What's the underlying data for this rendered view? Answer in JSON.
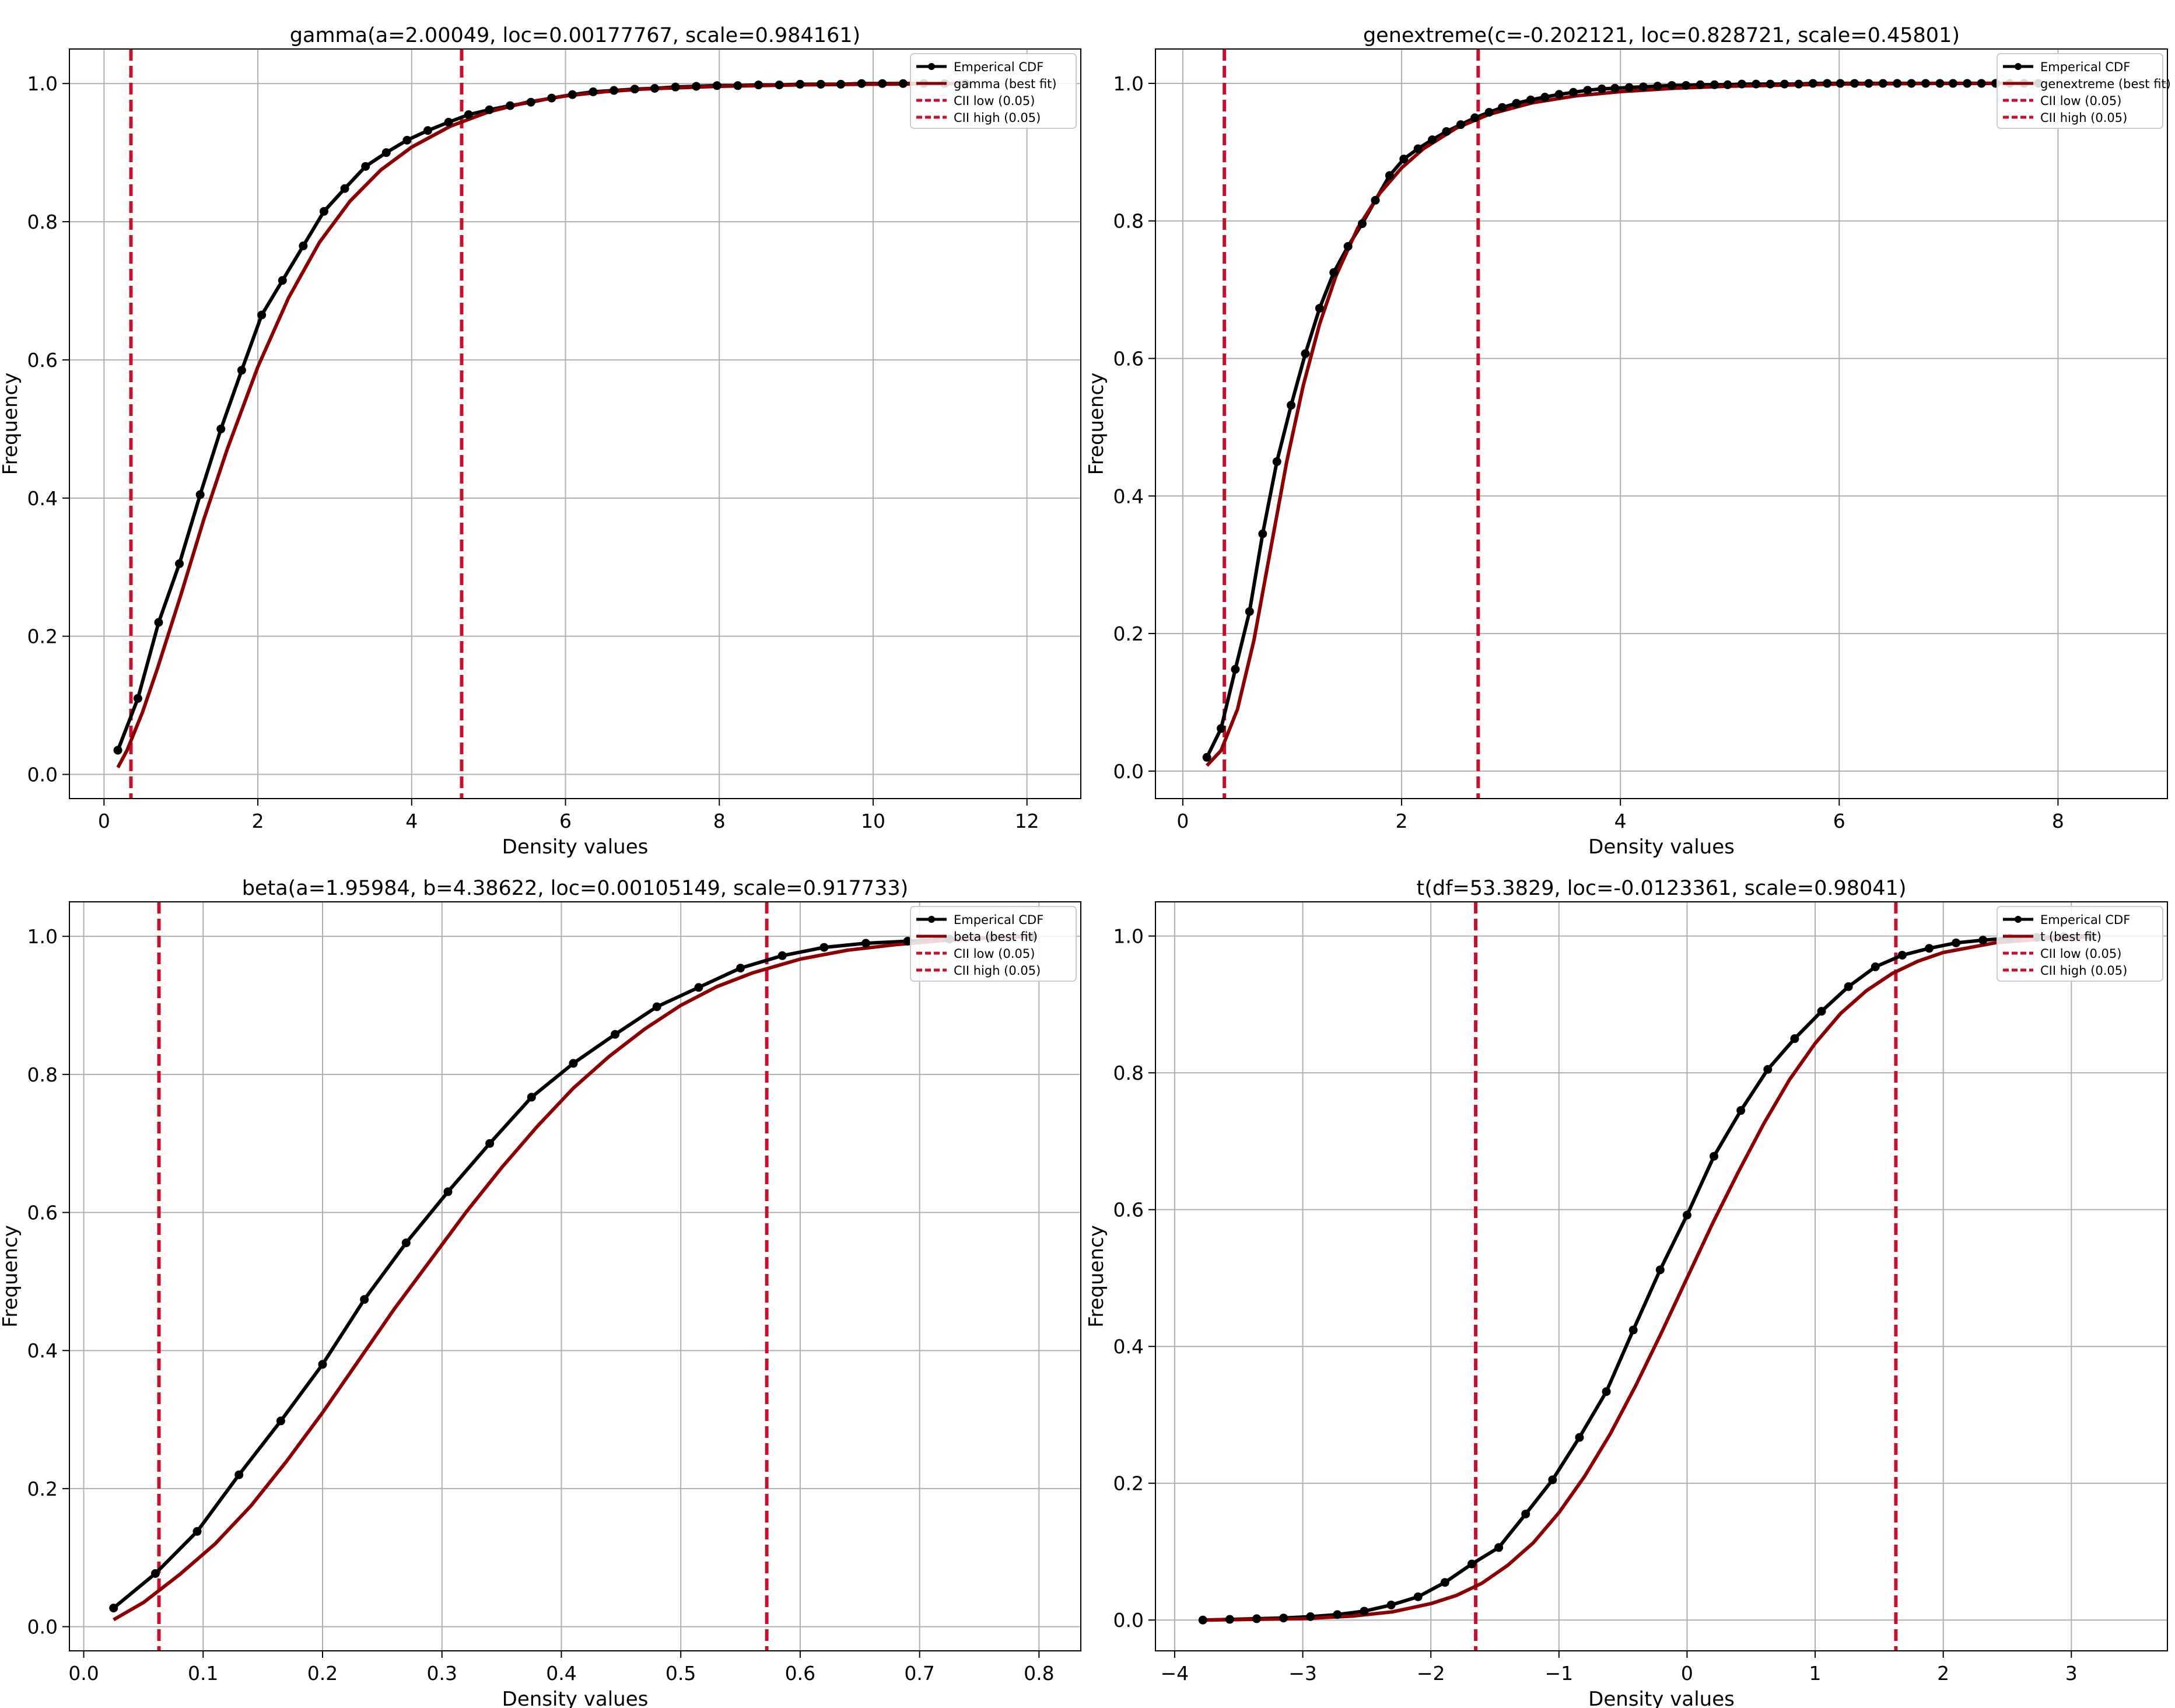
{
  "figure": {
    "colors": {
      "empirical": "#000000",
      "fit": "#8b0000",
      "ci": "#c8102e",
      "grid": "#b0b0b0",
      "axes": "#000000"
    }
  },
  "chart_data": [
    {
      "type": "line",
      "title": "gamma(a=2.00049, loc=0.00177767, scale=0.984161)",
      "xlabel": "Density values",
      "ylabel": "Frequency",
      "xlim": [
        -0.45,
        12.7
      ],
      "ylim": [
        -0.035,
        1.05
      ],
      "xticks": [
        0,
        2,
        4,
        6,
        8,
        10,
        12
      ],
      "xtick_labels": [
        "0",
        "2",
        "4",
        "6",
        "8",
        "10",
        "12"
      ],
      "yticks": [
        0.0,
        0.2,
        0.4,
        0.6,
        0.8,
        1.0
      ],
      "ytick_labels": [
        "0.0",
        "0.2",
        "0.4",
        "0.6",
        "0.8",
        "1.0"
      ],
      "grid": true,
      "legend_position": "top-right",
      "legend": [
        "Emperical CDF",
        "gamma (best fit)",
        "CII low (0.05)",
        "CII high (0.05)"
      ],
      "ci_low": 0.35,
      "ci_high": 4.65,
      "empirical": {
        "x": [
          0.18,
          0.44,
          0.71,
          0.98,
          1.25,
          1.52,
          1.79,
          2.05,
          2.32,
          2.59,
          2.86,
          3.13,
          3.4,
          3.67,
          3.94,
          4.21,
          4.48,
          4.74,
          5.01,
          5.28,
          5.55,
          5.82,
          6.09,
          6.36,
          6.63,
          6.9,
          7.16,
          7.43,
          7.7,
          7.97,
          8.24,
          8.51,
          8.78,
          9.05,
          9.32,
          9.58,
          9.85,
          10.12,
          10.39,
          10.66,
          10.93,
          11.2
        ],
        "y": [
          0.035,
          0.11,
          0.22,
          0.305,
          0.405,
          0.5,
          0.585,
          0.665,
          0.715,
          0.765,
          0.815,
          0.848,
          0.88,
          0.9,
          0.918,
          0.932,
          0.944,
          0.955,
          0.962,
          0.968,
          0.973,
          0.979,
          0.984,
          0.988,
          0.99,
          0.992,
          0.993,
          0.995,
          0.996,
          0.997,
          0.997,
          0.998,
          0.998,
          0.999,
          0.999,
          0.999,
          1.0,
          1.0,
          1.0,
          1.0,
          1.0,
          1.0
        ]
      },
      "fit": {
        "x": [
          0.18,
          0.3,
          0.5,
          0.7,
          1.0,
          1.3,
          1.6,
          2.0,
          2.4,
          2.8,
          3.2,
          3.6,
          4.0,
          4.5,
          5.0,
          5.5,
          6.0,
          6.5,
          7.0,
          8.0,
          9.0,
          10.0,
          11.2
        ],
        "y": [
          0.01,
          0.035,
          0.09,
          0.155,
          0.26,
          0.37,
          0.47,
          0.59,
          0.69,
          0.77,
          0.83,
          0.875,
          0.908,
          0.938,
          0.959,
          0.973,
          0.982,
          0.988,
          0.992,
          0.996,
          0.998,
          0.999,
          1.0
        ]
      }
    },
    {
      "type": "line",
      "title": "genextreme(c=-0.202121, loc=0.828721, scale=0.45801)",
      "xlabel": "Density values",
      "ylabel": "Frequency",
      "xlim": [
        -0.25,
        9.0
      ],
      "ylim": [
        -0.04,
        1.05
      ],
      "xticks": [
        0,
        2,
        4,
        6,
        8
      ],
      "xtick_labels": [
        "0",
        "2",
        "4",
        "6",
        "8"
      ],
      "yticks": [
        0.0,
        0.2,
        0.4,
        0.6,
        0.8,
        1.0
      ],
      "ytick_labels": [
        "0.0",
        "0.2",
        "0.4",
        "0.6",
        "0.8",
        "1.0"
      ],
      "grid": true,
      "legend_position": "top-right",
      "legend": [
        "Emperical CDF",
        "genextreme (best fit)",
        "CII low (0.05)",
        "CII high (0.05)"
      ],
      "ci_low": 0.38,
      "ci_high": 2.7,
      "empirical": {
        "x": [
          0.22,
          0.35,
          0.48,
          0.61,
          0.73,
          0.86,
          0.99,
          1.12,
          1.25,
          1.38,
          1.51,
          1.64,
          1.76,
          1.89,
          2.02,
          2.15,
          2.28,
          2.41,
          2.54,
          2.67,
          2.8,
          2.92,
          3.05,
          3.18,
          3.31,
          3.44,
          3.57,
          3.7,
          3.83,
          3.95,
          4.08,
          4.21,
          4.34,
          4.47,
          4.6,
          4.73,
          4.86,
          4.98,
          5.11,
          5.24,
          5.37,
          5.5,
          5.63,
          5.76,
          5.89,
          6.01,
          6.14,
          6.27,
          6.4,
          6.53,
          6.66,
          6.79,
          6.92,
          7.04,
          7.17,
          7.3,
          7.43,
          7.56,
          7.69,
          7.82
        ],
        "y": [
          0.02,
          0.062,
          0.148,
          0.232,
          0.345,
          0.45,
          0.532,
          0.607,
          0.673,
          0.725,
          0.763,
          0.796,
          0.83,
          0.866,
          0.89,
          0.905,
          0.918,
          0.93,
          0.94,
          0.95,
          0.958,
          0.965,
          0.971,
          0.976,
          0.98,
          0.984,
          0.987,
          0.99,
          0.992,
          0.993,
          0.994,
          0.995,
          0.996,
          0.997,
          0.997,
          0.998,
          0.998,
          0.998,
          0.999,
          0.999,
          0.999,
          0.999,
          0.999,
          1.0,
          1.0,
          1.0,
          1.0,
          1.0,
          1.0,
          1.0,
          1.0,
          1.0,
          1.0,
          1.0,
          1.0,
          1.0,
          1.0,
          1.0,
          1.0,
          1.0
        ]
      },
      "fit": {
        "x": [
          0.22,
          0.35,
          0.5,
          0.65,
          0.8,
          0.95,
          1.1,
          1.25,
          1.4,
          1.6,
          1.8,
          2.0,
          2.2,
          2.5,
          2.8,
          3.2,
          3.6,
          4.0,
          4.5,
          5.0,
          6.0,
          7.0,
          7.82
        ],
        "y": [
          0.008,
          0.03,
          0.09,
          0.19,
          0.32,
          0.45,
          0.56,
          0.65,
          0.72,
          0.79,
          0.84,
          0.877,
          0.905,
          0.935,
          0.955,
          0.972,
          0.982,
          0.988,
          0.993,
          0.996,
          0.999,
          1.0,
          1.0
        ]
      }
    },
    {
      "type": "line",
      "title": "beta(a=1.95984, b=4.38622, loc=0.00105149, scale=0.917733)",
      "xlabel": "Density values",
      "ylabel": "Frequency",
      "xlim": [
        -0.012,
        0.835
      ],
      "ylim": [
        -0.035,
        1.05
      ],
      "xticks": [
        0.0,
        0.1,
        0.2,
        0.3,
        0.4,
        0.5,
        0.6,
        0.7,
        0.8
      ],
      "xtick_labels": [
        "0.0",
        "0.1",
        "0.2",
        "0.3",
        "0.4",
        "0.5",
        "0.6",
        "0.7",
        "0.8"
      ],
      "yticks": [
        0.0,
        0.2,
        0.4,
        0.6,
        0.8,
        1.0
      ],
      "ytick_labels": [
        "0.0",
        "0.2",
        "0.4",
        "0.6",
        "0.8",
        "1.0"
      ],
      "grid": true,
      "legend_position": "top-right",
      "legend": [
        "Emperical CDF",
        "beta (best fit)",
        "CII low (0.05)",
        "CII high (0.05)"
      ],
      "ci_low": 0.063,
      "ci_high": 0.572,
      "empirical": {
        "x": [
          0.025,
          0.06,
          0.095,
          0.13,
          0.165,
          0.2,
          0.235,
          0.27,
          0.305,
          0.34,
          0.375,
          0.41,
          0.445,
          0.48,
          0.515,
          0.55,
          0.585,
          0.62,
          0.655,
          0.69,
          0.725,
          0.76,
          0.795
        ],
        "y": [
          0.027,
          0.077,
          0.138,
          0.22,
          0.298,
          0.38,
          0.474,
          0.556,
          0.63,
          0.7,
          0.767,
          0.816,
          0.858,
          0.898,
          0.926,
          0.954,
          0.972,
          0.984,
          0.99,
          0.993,
          0.996,
          0.998,
          1.0
        ]
      },
      "fit": {
        "x": [
          0.025,
          0.05,
          0.08,
          0.11,
          0.14,
          0.17,
          0.2,
          0.23,
          0.26,
          0.29,
          0.32,
          0.35,
          0.38,
          0.41,
          0.44,
          0.47,
          0.5,
          0.53,
          0.56,
          0.6,
          0.64,
          0.68,
          0.72,
          0.76,
          0.795
        ],
        "y": [
          0.01,
          0.035,
          0.075,
          0.12,
          0.175,
          0.24,
          0.31,
          0.385,
          0.46,
          0.53,
          0.6,
          0.665,
          0.725,
          0.78,
          0.826,
          0.866,
          0.9,
          0.927,
          0.947,
          0.967,
          0.98,
          0.988,
          0.994,
          0.998,
          1.0
        ]
      }
    },
    {
      "type": "line",
      "title": "t(df=53.3829, loc=-0.0123361, scale=0.98041)",
      "xlabel": "Density values",
      "ylabel": "Frequency",
      "xlim": [
        -4.15,
        3.75
      ],
      "ylim": [
        -0.045,
        1.05
      ],
      "xticks": [
        -4,
        -3,
        -2,
        -1,
        0,
        1,
        2,
        3
      ],
      "xtick_labels": [
        "−4",
        "−3",
        "−2",
        "−1",
        "0",
        "1",
        "2",
        "3"
      ],
      "yticks": [
        0.0,
        0.2,
        0.4,
        0.6,
        0.8,
        1.0
      ],
      "ytick_labels": [
        "0.0",
        "0.2",
        "0.4",
        "0.6",
        "0.8",
        "1.0"
      ],
      "grid": true,
      "legend_position": "top-right",
      "legend": [
        "Emperical CDF",
        "t (best fit)",
        "CII low (0.05)",
        "CII high (0.05)"
      ],
      "ci_low": -1.65,
      "ci_high": 1.63,
      "empirical": {
        "x": [
          -3.78,
          -3.57,
          -3.36,
          -3.15,
          -2.94,
          -2.73,
          -2.52,
          -2.31,
          -2.1,
          -1.89,
          -1.68,
          -1.47,
          -1.26,
          -1.05,
          -0.84,
          -0.63,
          -0.42,
          -0.21,
          0.0,
          0.21,
          0.42,
          0.63,
          0.84,
          1.05,
          1.26,
          1.47,
          1.68,
          1.89,
          2.1,
          2.31,
          2.52,
          2.73,
          2.94,
          3.15
        ],
        "y": [
          0.0,
          0.001,
          0.002,
          0.003,
          0.005,
          0.008,
          0.013,
          0.022,
          0.034,
          0.055,
          0.082,
          0.106,
          0.155,
          0.205,
          0.267,
          0.334,
          0.424,
          0.512,
          0.592,
          0.678,
          0.745,
          0.805,
          0.85,
          0.89,
          0.926,
          0.955,
          0.972,
          0.982,
          0.99,
          0.994,
          0.997,
          0.998,
          0.999,
          1.0
        ]
      },
      "fit": {
        "x": [
          -3.78,
          -3.4,
          -3.0,
          -2.6,
          -2.3,
          -2.0,
          -1.8,
          -1.6,
          -1.4,
          -1.2,
          -1.0,
          -0.8,
          -0.6,
          -0.4,
          -0.2,
          0.0,
          0.2,
          0.4,
          0.6,
          0.8,
          1.0,
          1.2,
          1.4,
          1.6,
          1.8,
          2.0,
          2.4,
          2.8,
          3.15
        ],
        "y": [
          0.0,
          0.001,
          0.002,
          0.006,
          0.012,
          0.024,
          0.036,
          0.054,
          0.08,
          0.113,
          0.157,
          0.21,
          0.272,
          0.343,
          0.42,
          0.5,
          0.58,
          0.655,
          0.726,
          0.79,
          0.843,
          0.887,
          0.92,
          0.945,
          0.963,
          0.976,
          0.99,
          0.996,
          0.999
        ]
      }
    }
  ]
}
